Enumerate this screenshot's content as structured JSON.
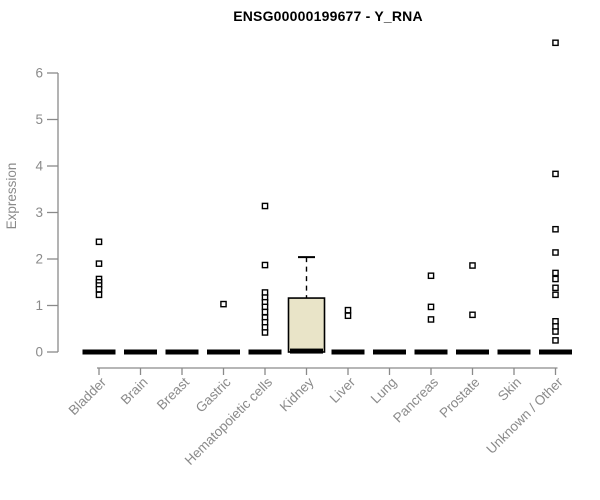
{
  "colors": {
    "axis": "#8a8a8a",
    "tick_text": "#8a8a8a",
    "title_text": "#000000",
    "box_fill": "#e9e4c8",
    "box_stroke": "#000000",
    "median": "#000000",
    "point_fill": "#ffffff",
    "point_stroke": "#000000",
    "background": "#ffffff"
  },
  "chart_data": {
    "type": "boxplot",
    "title": "ENSG00000199677 - Y_RNA",
    "ylabel": "Expression",
    "xlabel": "",
    "y_ticks": [
      0,
      1,
      2,
      3,
      4,
      5,
      6
    ],
    "ylim": [
      0,
      6.8
    ],
    "grid": false,
    "legend_position": "none",
    "x_label_rotation_deg": 45,
    "categories": [
      "Bladder",
      "Brain",
      "Breast",
      "Gastric",
      "Hematopoietic cells",
      "Kidney",
      "Liver",
      "Lung",
      "Pancreas",
      "Prostate",
      "Skin",
      "Unknown / Other"
    ],
    "boxes": [
      {
        "category": "Bladder",
        "median": 0,
        "q1": 0,
        "q3": 0,
        "whisker_low": 0,
        "whisker_high": 0,
        "outliers": [
          2.37,
          1.9,
          1.57,
          1.5,
          1.43,
          1.35,
          1.23
        ]
      },
      {
        "category": "Brain",
        "median": 0,
        "q1": 0,
        "q3": 0,
        "whisker_low": 0,
        "whisker_high": 0,
        "outliers": []
      },
      {
        "category": "Breast",
        "median": 0,
        "q1": 0,
        "q3": 0,
        "whisker_low": 0,
        "whisker_high": 0,
        "outliers": []
      },
      {
        "category": "Gastric",
        "median": 0,
        "q1": 0,
        "q3": 0,
        "whisker_low": 0,
        "whisker_high": 0,
        "outliers": [
          1.03
        ]
      },
      {
        "category": "Hematopoietic cells",
        "median": 0,
        "q1": 0,
        "q3": 0,
        "whisker_low": 0,
        "whisker_high": 0,
        "outliers": [
          3.14,
          1.87,
          1.28,
          1.17,
          1.07,
          0.97,
          0.86,
          0.74,
          0.64,
          0.53,
          0.42
        ]
      },
      {
        "category": "Kidney",
        "median": 0.02,
        "q1": 0,
        "q3": 1.16,
        "whisker_low": 0,
        "whisker_high": 2.04,
        "outliers": []
      },
      {
        "category": "Liver",
        "median": 0,
        "q1": 0,
        "q3": 0,
        "whisker_low": 0,
        "whisker_high": 0,
        "outliers": [
          0.9,
          0.78
        ]
      },
      {
        "category": "Lung",
        "median": 0,
        "q1": 0,
        "q3": 0,
        "whisker_low": 0,
        "whisker_high": 0,
        "outliers": []
      },
      {
        "category": "Pancreas",
        "median": 0,
        "q1": 0,
        "q3": 0,
        "whisker_low": 0,
        "whisker_high": 0,
        "outliers": [
          1.64,
          0.97,
          0.7
        ]
      },
      {
        "category": "Prostate",
        "median": 0,
        "q1": 0,
        "q3": 0,
        "whisker_low": 0,
        "whisker_high": 0,
        "outliers": [
          1.86,
          0.8
        ]
      },
      {
        "category": "Skin",
        "median": 0,
        "q1": 0,
        "q3": 0,
        "whisker_low": 0,
        "whisker_high": 0,
        "outliers": []
      },
      {
        "category": "Unknown / Other",
        "median": 0,
        "q1": 0,
        "q3": 0,
        "whisker_low": 0,
        "whisker_high": 0,
        "outliers": [
          6.65,
          3.83,
          2.64,
          2.14,
          1.7,
          1.57,
          1.38,
          1.23,
          0.66,
          0.55,
          0.44,
          0.25
        ]
      }
    ]
  }
}
